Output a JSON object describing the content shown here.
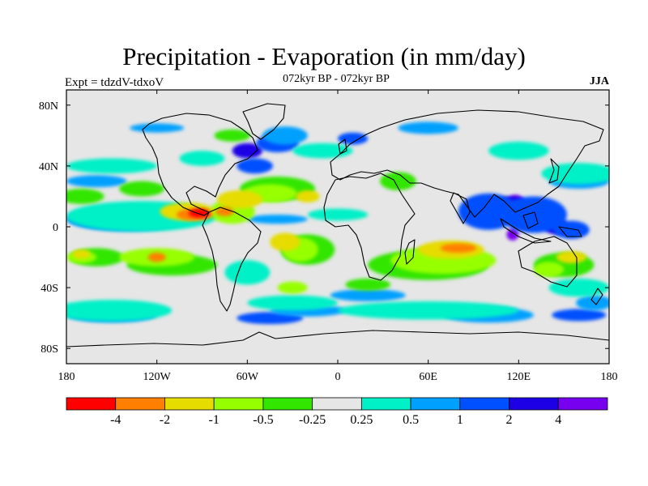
{
  "title": "Precipitation - Evaporation (in mm/day)",
  "subtitle_left": "Expt = tdzdV-tdxoV",
  "subtitle_center": "072kyr BP - 072kyr BP",
  "subtitle_right": "JJA",
  "map": {
    "projection": "cylindrical-equidistant",
    "lon_range": [
      -180,
      180
    ],
    "lat_range": [
      -90,
      90
    ],
    "x_ticks": [
      {
        "lon": -180,
        "label": "180"
      },
      {
        "lon": -120,
        "label": "120W"
      },
      {
        "lon": -60,
        "label": "60W"
      },
      {
        "lon": 0,
        "label": "0"
      },
      {
        "lon": 60,
        "label": "60E"
      },
      {
        "lon": 120,
        "label": "120E"
      },
      {
        "lon": 180,
        "label": "180"
      }
    ],
    "y_ticks": [
      {
        "lat": 80,
        "label": "80N"
      },
      {
        "lat": 40,
        "label": "40N"
      },
      {
        "lat": 0,
        "label": "0"
      },
      {
        "lat": -40,
        "label": "40S"
      },
      {
        "lat": -80,
        "label": "80S"
      }
    ],
    "background_color": "#e6e6e6",
    "frame_color": "#000000"
  },
  "colorbar": {
    "colors": [
      "#ff0000",
      "#ff8000",
      "#e6dc00",
      "#96ff00",
      "#32e600",
      "#e6e6e6",
      "#00f0c8",
      "#00a0ff",
      "#0050ff",
      "#1e00e6",
      "#7800f0"
    ],
    "labels": [
      "-4",
      "-2",
      "-1",
      "-0.5",
      "-0.25",
      "0.25",
      "0.5",
      "1",
      "2",
      "4"
    ]
  },
  "fields": [
    {
      "level": "4",
      "color": "#7800f0",
      "blobs": [
        [
          118,
          15,
          6,
          6
        ],
        [
          116,
          -5,
          4,
          4
        ]
      ]
    },
    {
      "level": "2",
      "color": "#1e00e6",
      "blobs": [
        [
          -160,
          5,
          18,
          4
        ],
        [
          95,
          12,
          10,
          6
        ],
        [
          115,
          12,
          12,
          8
        ],
        [
          130,
          5,
          10,
          6
        ],
        [
          145,
          0,
          8,
          5
        ],
        [
          -60,
          50,
          10,
          5
        ]
      ]
    },
    {
      "level": "1",
      "color": "#0050ff",
      "blobs": [
        [
          -150,
          5,
          25,
          6
        ],
        [
          -110,
          5,
          10,
          4
        ],
        [
          100,
          10,
          20,
          12
        ],
        [
          130,
          8,
          22,
          12
        ],
        [
          155,
          -2,
          12,
          6
        ],
        [
          -40,
          55,
          14,
          6
        ],
        [
          -55,
          40,
          12,
          5
        ],
        [
          -45,
          -60,
          22,
          4
        ],
        [
          160,
          -58,
          18,
          4
        ],
        [
          10,
          58,
          10,
          4
        ]
      ]
    },
    {
      "level": "0.5",
      "color": "#00a0ff",
      "blobs": [
        [
          -140,
          5,
          40,
          8
        ],
        [
          -40,
          5,
          20,
          3
        ],
        [
          160,
          30,
          20,
          5
        ],
        [
          -160,
          30,
          20,
          4
        ],
        [
          -150,
          -58,
          30,
          5
        ],
        [
          -20,
          -55,
          25,
          4
        ],
        [
          100,
          -58,
          30,
          5
        ],
        [
          170,
          -50,
          12,
          5
        ],
        [
          20,
          -45,
          25,
          4
        ],
        [
          -35,
          60,
          15,
          6
        ],
        [
          60,
          65,
          20,
          4
        ],
        [
          -120,
          65,
          18,
          3
        ]
      ]
    },
    {
      "level": "0.25",
      "color": "#00f0c8",
      "blobs": [
        [
          -130,
          7,
          50,
          10
        ],
        [
          -150,
          -55,
          40,
          7
        ],
        [
          60,
          -55,
          60,
          6
        ],
        [
          -30,
          -50,
          30,
          5
        ],
        [
          160,
          35,
          25,
          7
        ],
        [
          -150,
          40,
          30,
          5
        ],
        [
          -10,
          50,
          20,
          5
        ],
        [
          0,
          8,
          20,
          4
        ],
        [
          160,
          -40,
          20,
          6
        ],
        [
          120,
          50,
          20,
          6
        ],
        [
          -90,
          45,
          15,
          5
        ],
        [
          -60,
          -30,
          15,
          8
        ]
      ]
    },
    {
      "level": "-0.25",
      "color": "#32e600",
      "blobs": [
        [
          -160,
          -20,
          18,
          6
        ],
        [
          -110,
          -25,
          30,
          7
        ],
        [
          -20,
          -15,
          18,
          10
        ],
        [
          60,
          -25,
          40,
          10
        ],
        [
          150,
          -25,
          20,
          8
        ],
        [
          -40,
          25,
          25,
          8
        ],
        [
          -170,
          20,
          15,
          5
        ],
        [
          40,
          30,
          12,
          6
        ],
        [
          -130,
          25,
          15,
          5
        ],
        [
          -70,
          60,
          12,
          4
        ],
        [
          20,
          -38,
          15,
          4
        ]
      ]
    },
    {
      "level": "-0.5",
      "color": "#96ff00",
      "blobs": [
        [
          -120,
          -20,
          25,
          6
        ],
        [
          -25,
          -15,
          12,
          8
        ],
        [
          70,
          -22,
          35,
          9
        ],
        [
          -45,
          22,
          18,
          6
        ],
        [
          -170,
          -20,
          10,
          4
        ],
        [
          140,
          -28,
          10,
          5
        ],
        [
          -70,
          10,
          15,
          8
        ],
        [
          -30,
          -40,
          10,
          4
        ]
      ]
    },
    {
      "level": "-1",
      "color": "#e6dc00",
      "blobs": [
        [
          -100,
          10,
          18,
          6
        ],
        [
          -65,
          18,
          15,
          6
        ],
        [
          -35,
          -10,
          10,
          6
        ],
        [
          75,
          -15,
          22,
          6
        ],
        [
          -20,
          20,
          8,
          4
        ],
        [
          155,
          -20,
          10,
          4
        ],
        [
          -170,
          -18,
          6,
          3
        ]
      ]
    },
    {
      "level": "-2",
      "color": "#ff8000",
      "blobs": [
        [
          -95,
          8,
          12,
          4
        ],
        [
          -75,
          10,
          6,
          3
        ],
        [
          80,
          -14,
          12,
          3
        ],
        [
          -120,
          -20,
          6,
          3
        ]
      ]
    },
    {
      "level": "-4",
      "color": "#ff0000",
      "blobs": [
        [
          -92,
          9,
          7,
          3
        ]
      ]
    }
  ]
}
